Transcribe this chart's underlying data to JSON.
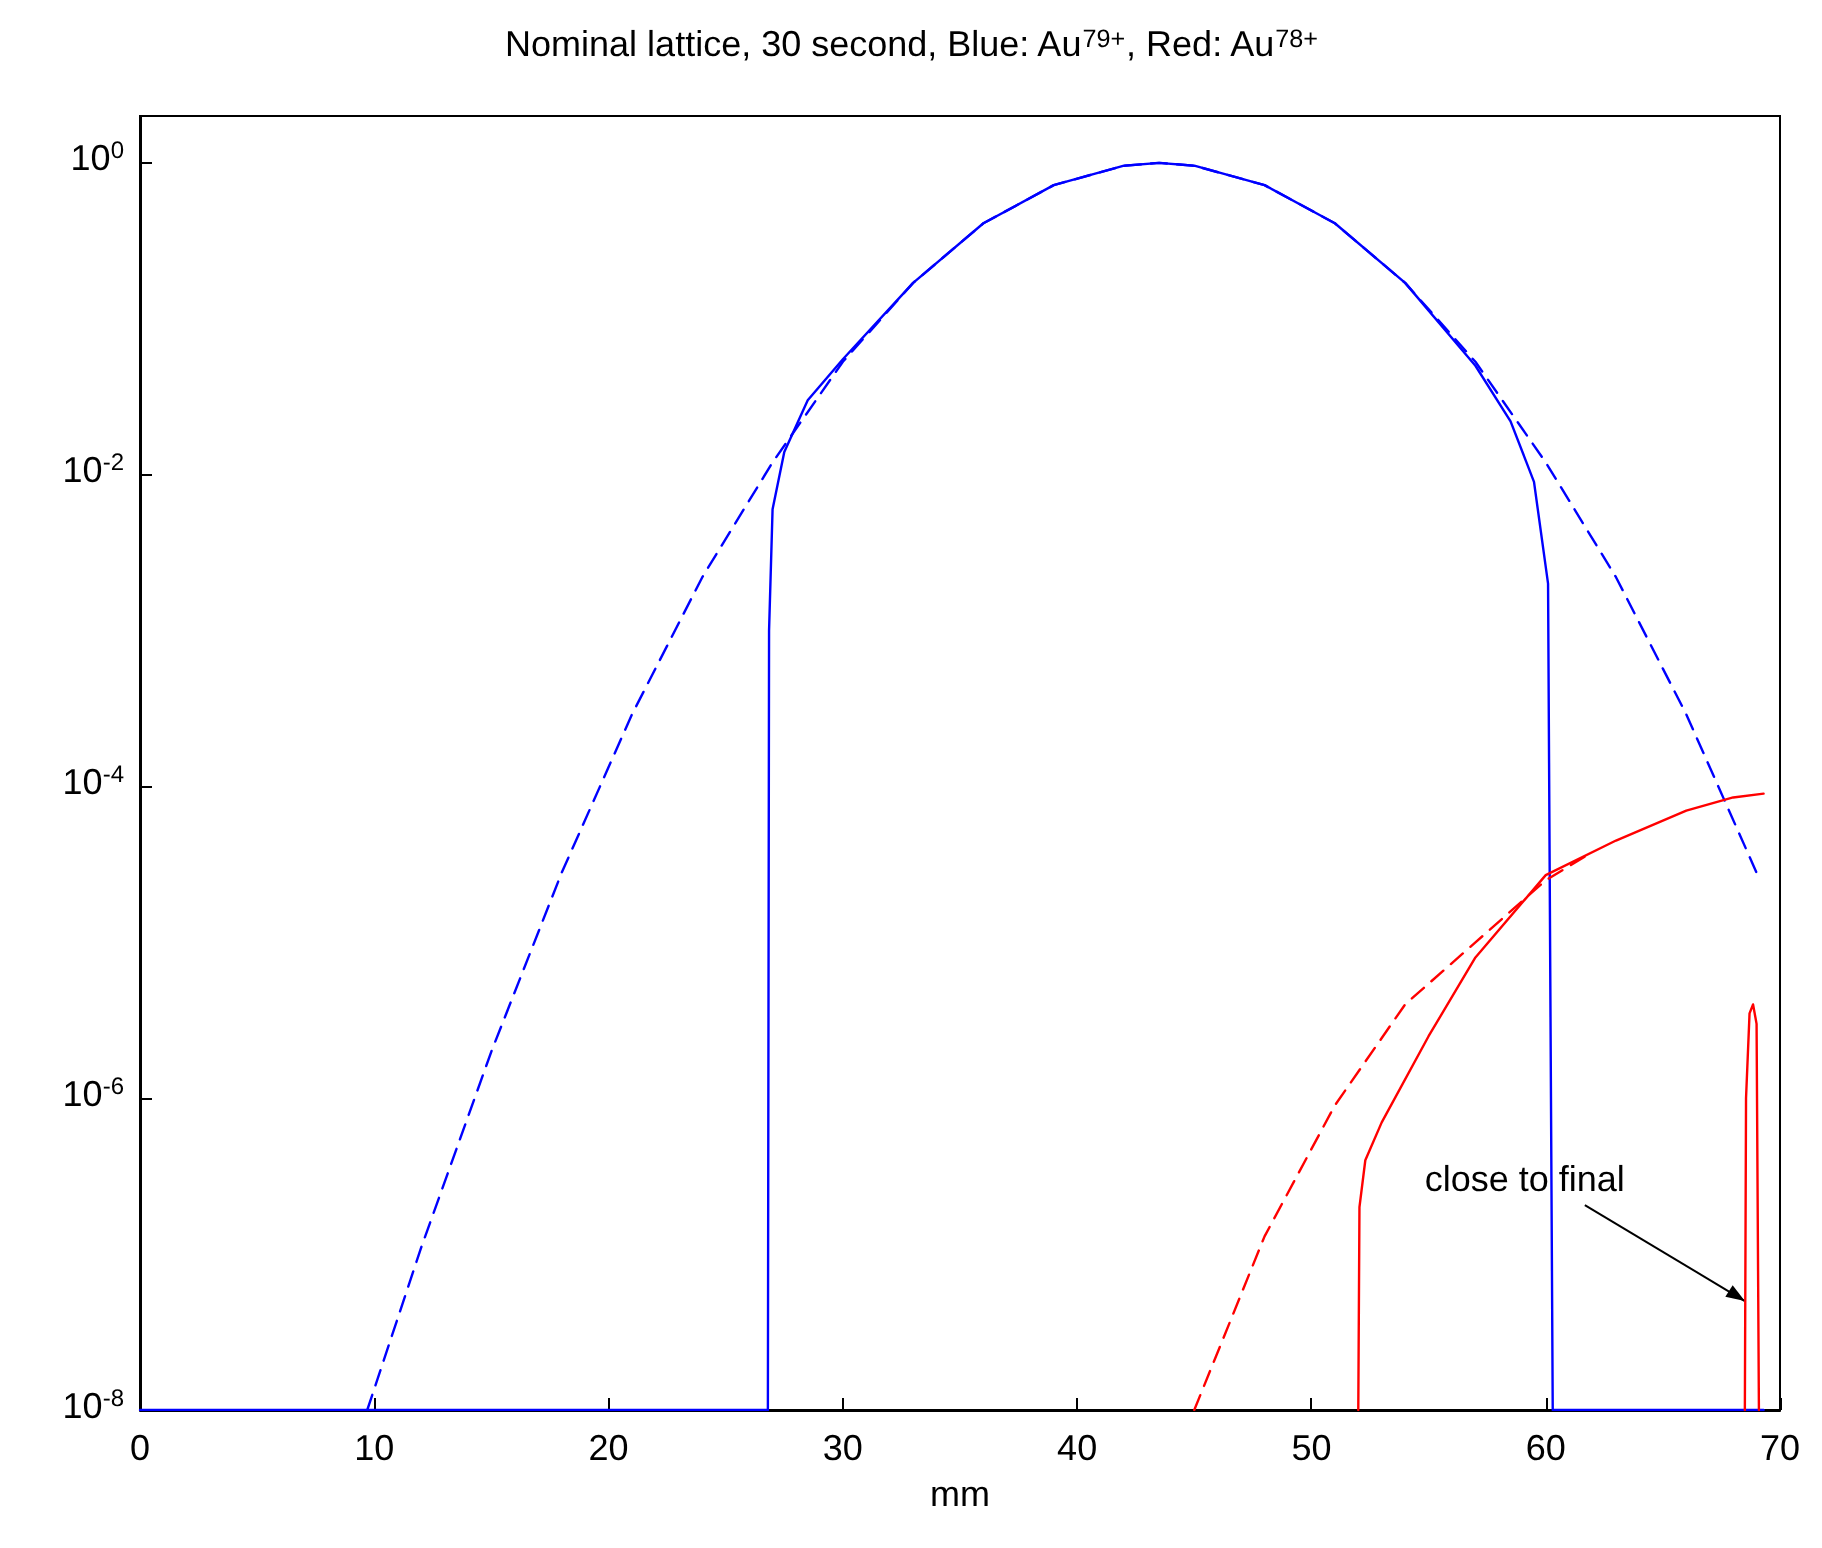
{
  "chart_data": {
    "type": "line",
    "title": "Nominal lattice, 30 second, Blue: Au$^{79+}$, Red: Au$^{78+}$",
    "xlabel": "mm",
    "xlim": [
      0,
      70
    ],
    "xticks": [
      0,
      10,
      20,
      30,
      40,
      50,
      60,
      70
    ],
    "ylim": [
      1e-08,
      2
    ],
    "yticks": [
      {
        "value": 1e-08,
        "label": "10$^{-8}$"
      },
      {
        "value": 1e-06,
        "label": "10$^{-6}$"
      },
      {
        "value": 0.0001,
        "label": "10$^{-4}$"
      },
      {
        "value": 0.01,
        "label": "10$^{-2}$"
      },
      {
        "value": 1,
        "label": "10$^{0}$"
      }
    ],
    "log": "y",
    "grid": false,
    "marker": "none",
    "annotations": [
      {
        "text": "close to final",
        "x": 68.5,
        "y": 5e-08
      }
    ],
    "series": [
      {
        "color": "#0000ff",
        "line_style": "solid",
        "x": [
          0,
          26.8,
          26.85,
          27,
          27.5,
          28.5,
          30,
          33,
          36,
          39,
          42,
          43.5,
          45,
          48,
          51,
          54,
          57,
          58.5,
          59.5,
          60.1,
          60.3,
          69.3
        ],
        "values": [
          1e-08,
          1e-08,
          0.001,
          0.006,
          0.014,
          0.03,
          0.055,
          0.17,
          0.41,
          0.72,
          0.96,
          1,
          0.96,
          0.72,
          0.41,
          0.17,
          0.05,
          0.022,
          0.009,
          0.002,
          1e-08,
          1e-08
        ]
      },
      {
        "color": "#0000ff",
        "line_style": "dashed",
        "x": [
          9.7,
          12,
          15,
          18,
          21,
          24,
          27,
          30,
          33,
          36,
          39,
          42,
          43.5,
          45,
          48,
          51,
          54,
          57,
          60,
          63,
          66,
          69
        ],
        "values": [
          1e-08,
          1.1e-07,
          2e-06,
          2.8e-05,
          0.00029,
          0.0022,
          0.012,
          0.053,
          0.17,
          0.41,
          0.72,
          0.96,
          1,
          0.96,
          0.72,
          0.41,
          0.17,
          0.053,
          0.012,
          0.0022,
          0.00029,
          2.8e-05
        ]
      },
      {
        "color": "#ff0000",
        "line_style": "dashed",
        "x": [
          45,
          48,
          51,
          54,
          57,
          60,
          62
        ],
        "values": [
          1e-08,
          1.3e-07,
          9e-07,
          4e-06,
          1e-05,
          2.5e-05,
          3.8e-05
        ]
      },
      {
        "color": "#ff0000",
        "line_style": "solid",
        "x": [
          52,
          52.05,
          52.3,
          53,
          55,
          57,
          60,
          63,
          66,
          68,
          69.3
        ],
        "values": [
          1e-08,
          2e-07,
          4e-07,
          7e-07,
          2.5e-06,
          8e-06,
          2.7e-05,
          4.5e-05,
          7e-05,
          8.5e-05,
          9e-05
        ]
      },
      {
        "color": "#ff0000",
        "line_style": "solid",
        "x": [
          68.5,
          68.55,
          68.7,
          68.85,
          69,
          69.1
        ],
        "values": [
          1e-08,
          1e-06,
          3.5e-06,
          4e-06,
          3e-06,
          1e-08
        ]
      }
    ]
  }
}
